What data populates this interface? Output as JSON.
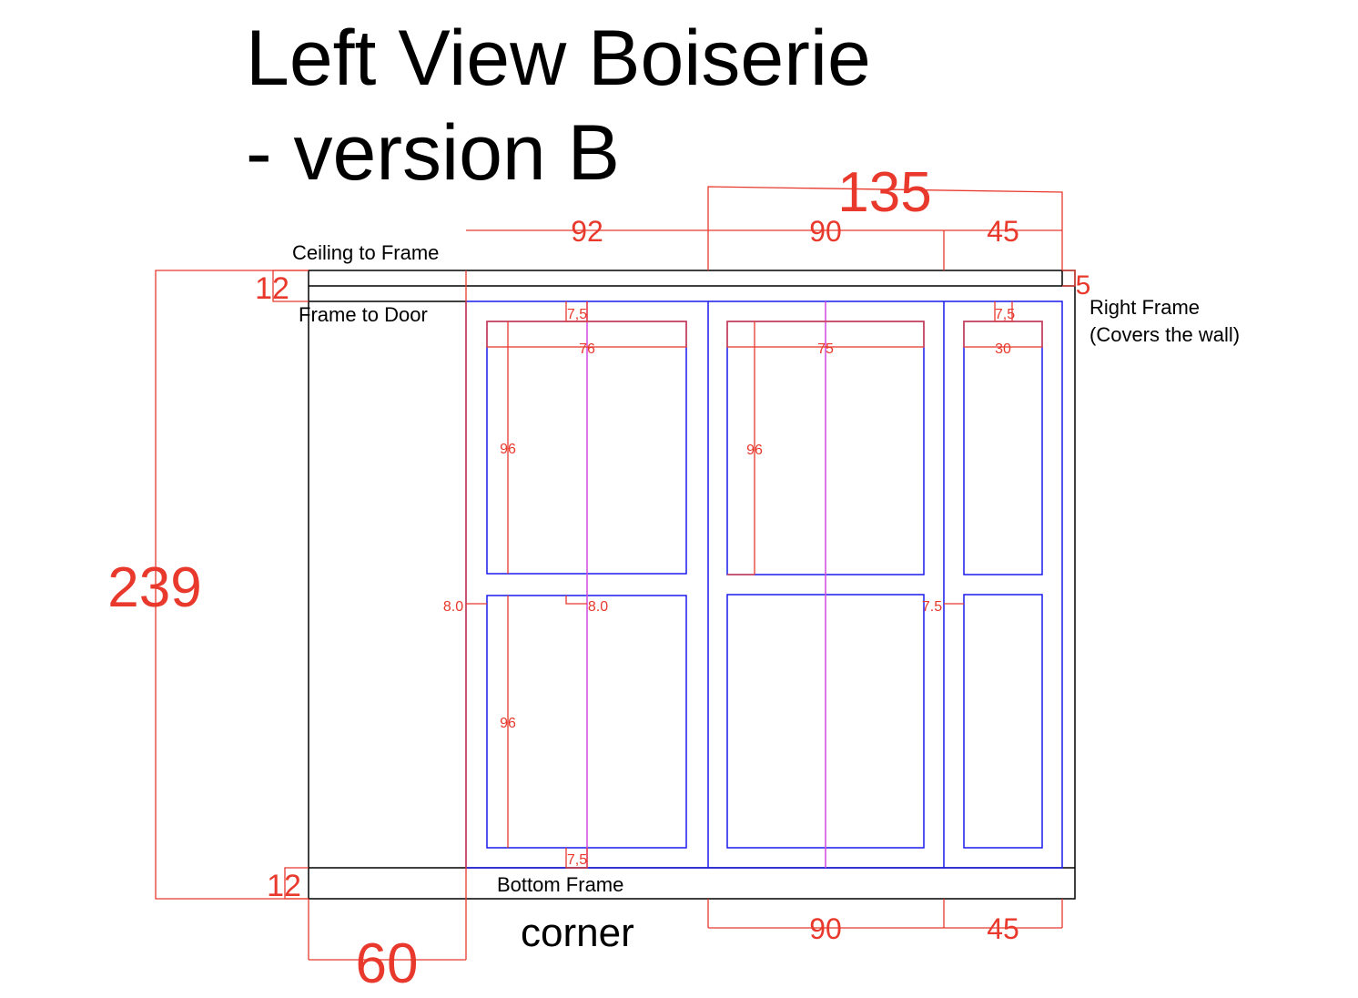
{
  "title_line1": "Left View Boiserie",
  "title_line2": "- version B",
  "labels": {
    "ceiling_to_frame": "Ceiling to Frame",
    "frame_to_door": "Frame to Door",
    "right_frame_line1": "Right Frame",
    "right_frame_line2": "(Covers the wall)",
    "bottom_frame": "Bottom Frame",
    "corner": "corner"
  },
  "dimensions": {
    "total_height": "239",
    "ceiling_gap": "12",
    "bottom_frame": "12",
    "corner_width": "60",
    "top_span_right": "135",
    "top_panel1_width": "92",
    "top_panel2_width": "90",
    "top_panel3_width": "45",
    "right_frame_width": "5",
    "bottom_panel2_width": "90",
    "bottom_panel3_width": "45",
    "rail_panel1_top": "7,5",
    "rail_panel1_bottom": "7,5",
    "rail_panel3_top": "7,5",
    "inner_width_panel1": "76",
    "inner_width_panel2": "75",
    "inner_width_panel3": "30",
    "inner_height_p1_upper": "96",
    "inner_height_p1_lower": "96",
    "inner_height_p2_upper": "96",
    "stile_left": "8.0",
    "mid_rail": "8.0",
    "stile_right": "7.5"
  },
  "colors": {
    "dimension": "#e8392c",
    "panel": "#1a1aee",
    "centerline": "#d04ae0",
    "outline": "#000000"
  }
}
